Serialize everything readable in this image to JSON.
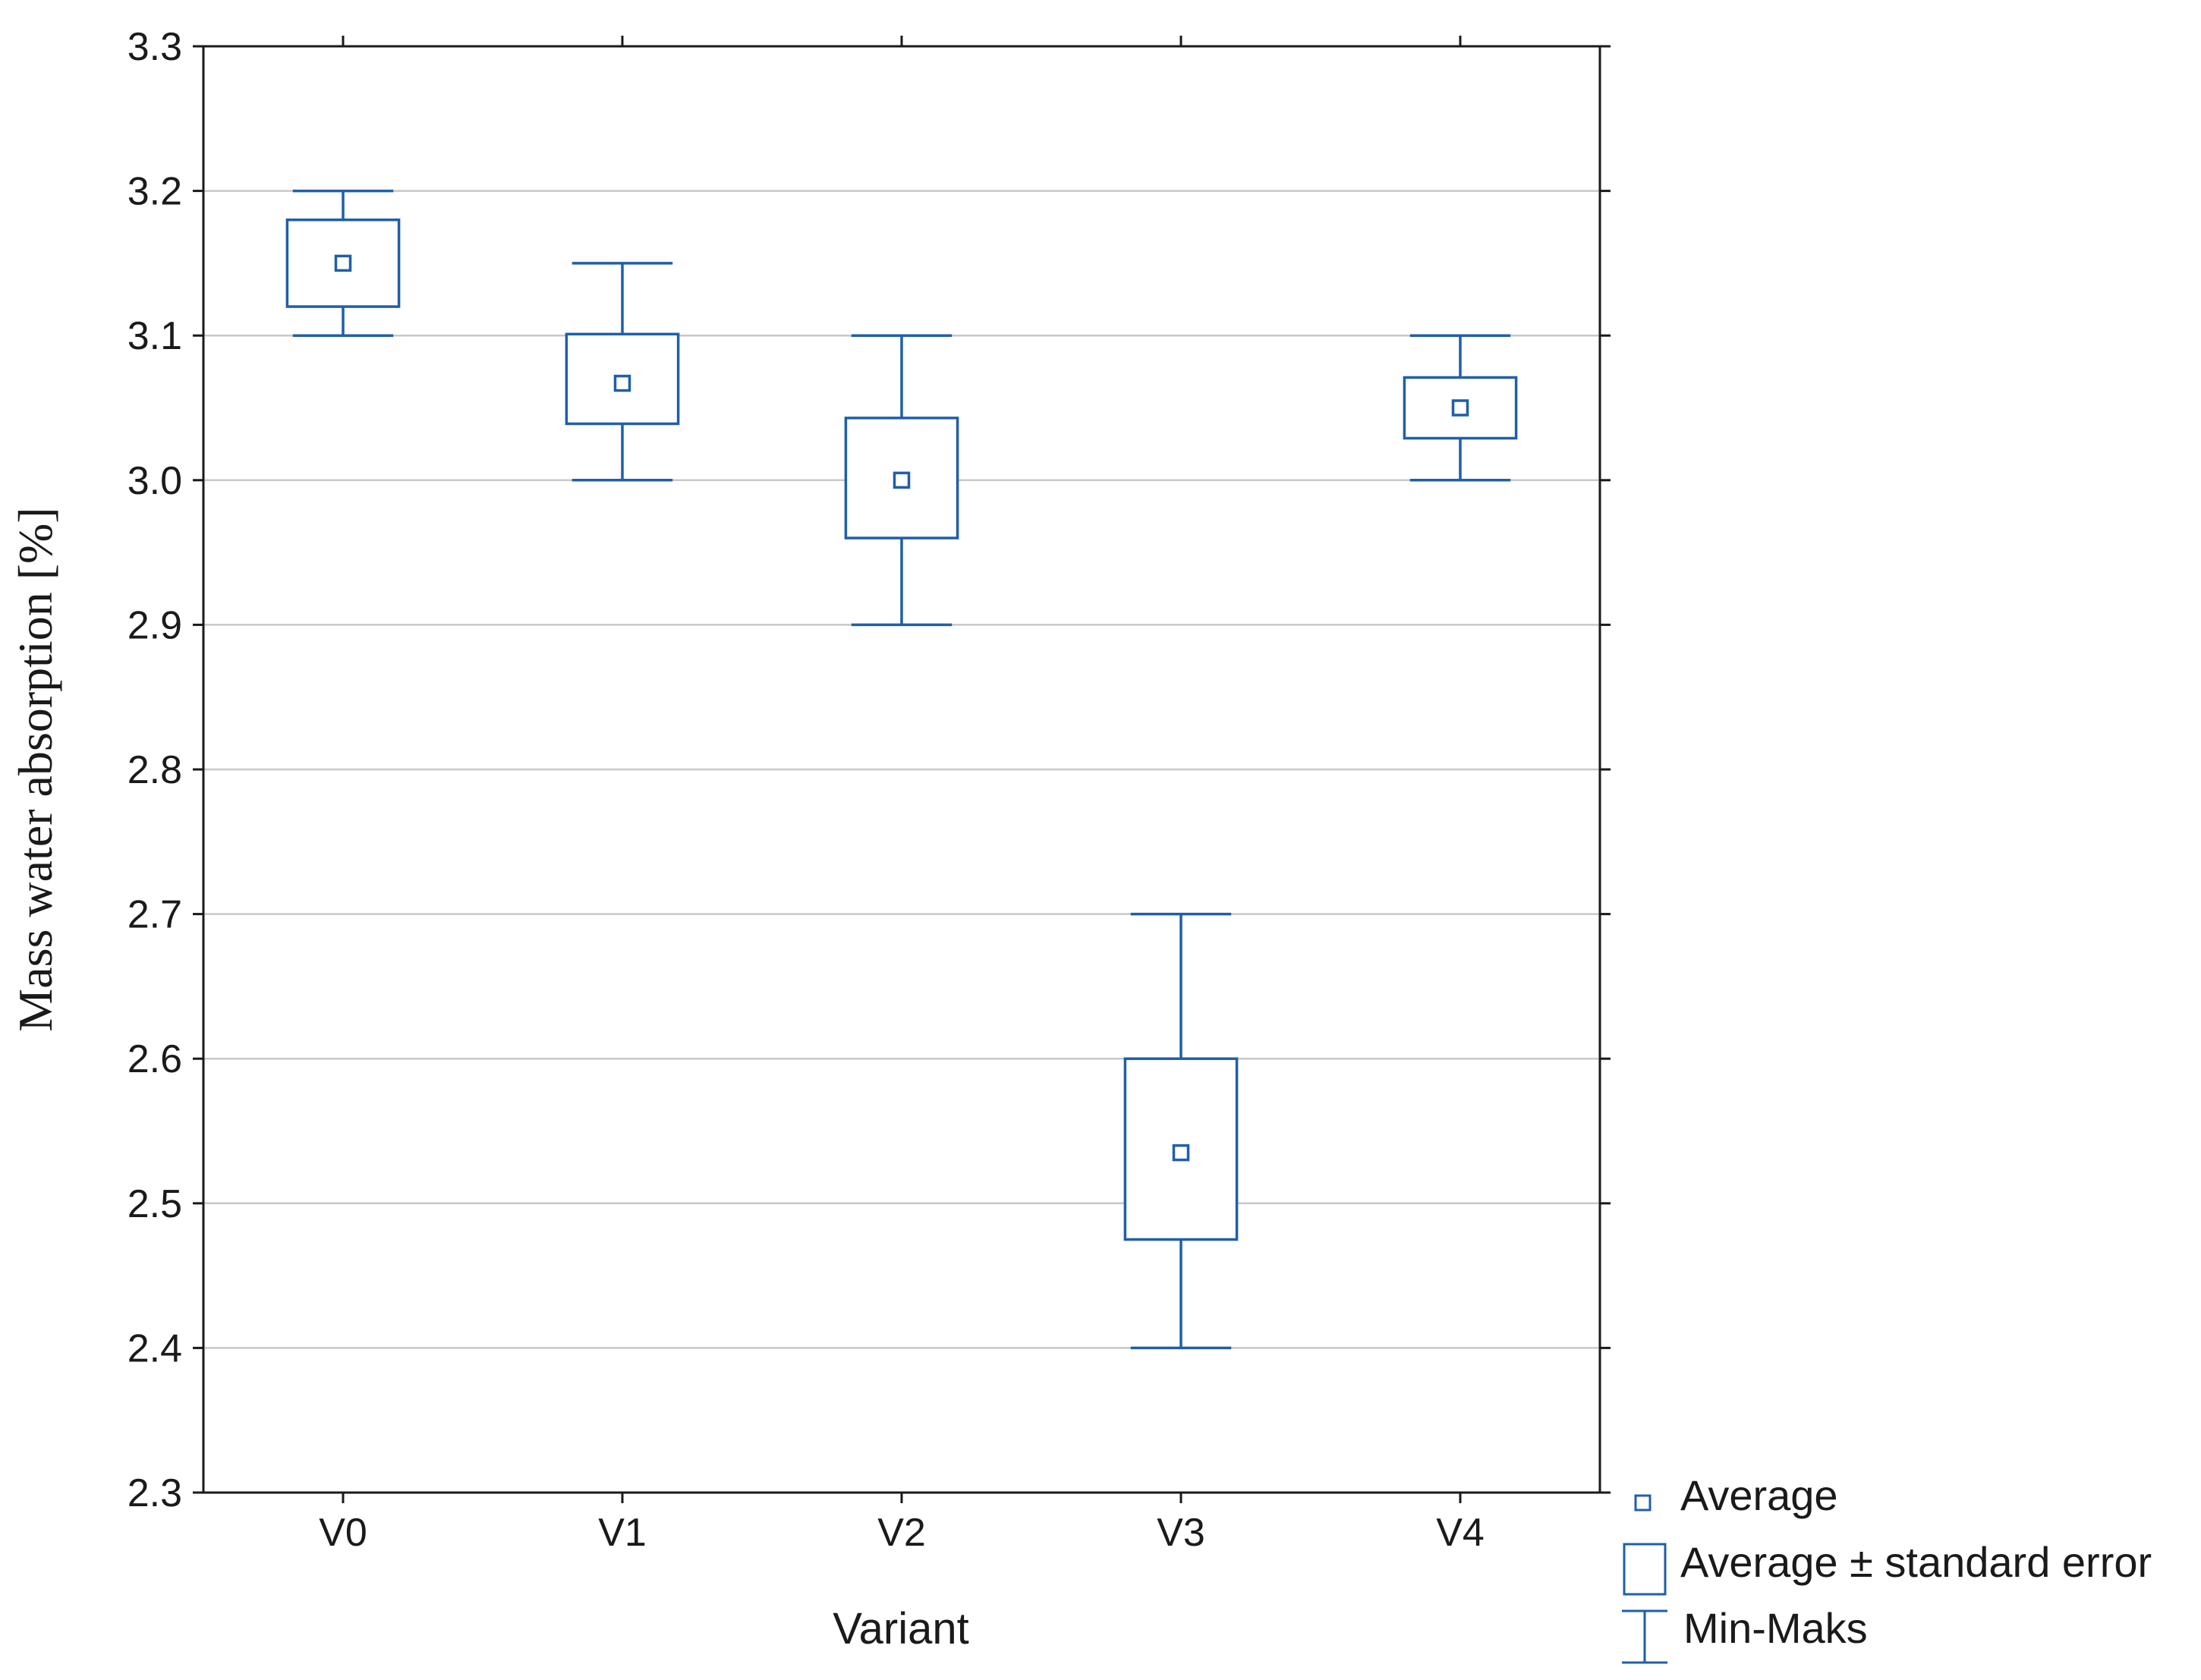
{
  "colors": {
    "series": "#1f5fa8",
    "grid": "#c8c8c8",
    "frame": "#1a1a1a",
    "text": "#1a1a1a"
  },
  "chart_data": {
    "type": "box",
    "title": "",
    "xlabel": "Variant",
    "ylabel": "Mass water absorption [%]",
    "ylim": [
      2.3,
      3.3
    ],
    "y_ticks": [
      "2.3",
      "2.4",
      "2.5",
      "2.6",
      "2.7",
      "2.8",
      "2.9",
      "3.0",
      "3.1",
      "3.2",
      "3.3"
    ],
    "grid": true,
    "categories": [
      "V0",
      "V1",
      "V2",
      "V3",
      "V4"
    ],
    "series": [
      {
        "category": "V0",
        "mean": 3.15,
        "se_low": 3.12,
        "se_high": 3.18,
        "min": 3.1,
        "max": 3.2
      },
      {
        "category": "V1",
        "mean": 3.067,
        "se_low": 3.039,
        "se_high": 3.101,
        "min": 3.0,
        "max": 3.15
      },
      {
        "category": "V2",
        "mean": 3.0,
        "se_low": 2.96,
        "se_high": 3.043,
        "min": 2.9,
        "max": 3.1
      },
      {
        "category": "V3",
        "mean": 2.535,
        "se_low": 2.475,
        "se_high": 2.6,
        "min": 2.4,
        "max": 2.7
      },
      {
        "category": "V4",
        "mean": 3.05,
        "se_low": 3.029,
        "se_high": 3.071,
        "min": 3.0,
        "max": 3.1
      }
    ],
    "legend": {
      "position": "bottom-right",
      "items": [
        {
          "symbol": "small-square",
          "label": "Average"
        },
        {
          "symbol": "box",
          "label": "Average ± standard error"
        },
        {
          "symbol": "whisker",
          "label": "Min-Maks"
        }
      ]
    }
  }
}
